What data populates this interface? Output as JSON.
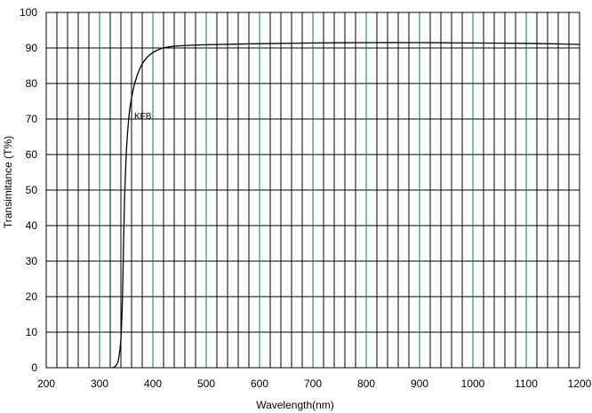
{
  "chart_data": {
    "type": "line",
    "title": "",
    "xlabel": "Wavelength(nm)",
    "ylabel": "Transimitance (T%)",
    "xlim": [
      200,
      1200
    ],
    "ylim": [
      0,
      100
    ],
    "x_ticks": [
      200,
      300,
      400,
      500,
      600,
      700,
      800,
      900,
      1000,
      1100,
      1200
    ],
    "y_ticks": [
      0,
      10,
      20,
      30,
      40,
      50,
      60,
      70,
      80,
      90,
      100
    ],
    "x_minor_step": 20,
    "grid": true,
    "colors": {
      "minor_grid": "#000000",
      "major_grid": "#008040",
      "line": "#000000"
    },
    "series": [
      {
        "name": "KFB",
        "x": [
          325,
          330,
          335,
          340,
          343,
          345,
          347,
          350,
          353,
          356,
          360,
          365,
          370,
          375,
          380,
          390,
          400,
          410,
          420,
          430,
          450,
          500,
          600,
          700,
          800,
          900,
          1000,
          1100,
          1200
        ],
        "y": [
          0,
          0.5,
          2,
          8,
          20,
          35,
          48,
          60,
          67,
          72,
          76,
          79.5,
          82,
          84,
          85.5,
          87.5,
          88.7,
          89.5,
          90,
          90.3,
          90.6,
          90.9,
          91.2,
          91.4,
          91.5,
          91.5,
          91.4,
          91.3,
          91.0
        ]
      }
    ],
    "annotations": [
      {
        "text": "KFB",
        "x": 365,
        "y": 65
      }
    ]
  }
}
